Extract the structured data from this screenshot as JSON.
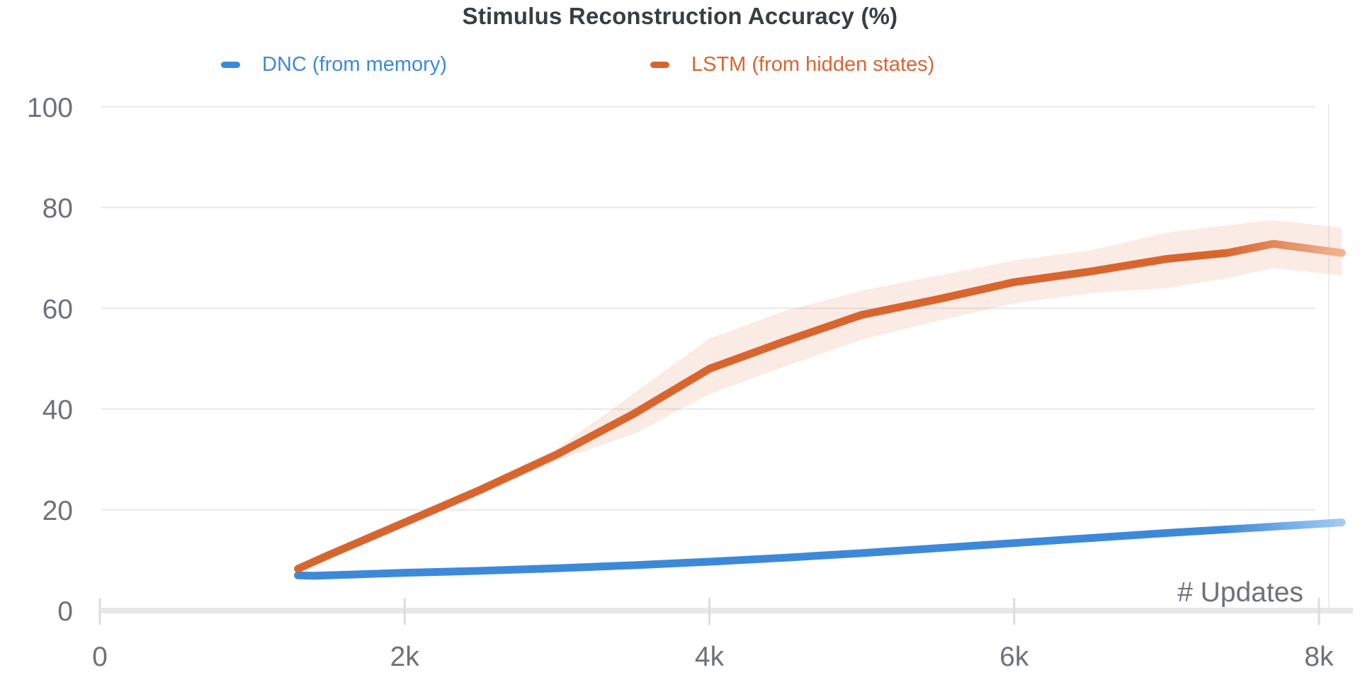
{
  "chart_data": {
    "type": "line",
    "title": "Stimulus Reconstruction Accuracy (%)",
    "xlabel": "# Updates",
    "ylabel": "",
    "xlim": [
      0,
      8200
    ],
    "ylim": [
      0,
      100
    ],
    "grid": "horizontal-only",
    "legend_position": "top",
    "x_ticks": [
      {
        "label": "0",
        "value": 0
      },
      {
        "label": "2k",
        "value": 2000
      },
      {
        "label": "4k",
        "value": 4000
      },
      {
        "label": "6k",
        "value": 6000
      },
      {
        "label": "8k",
        "value": 8000
      }
    ],
    "y_ticks": [
      {
        "label": "0",
        "value": 0
      },
      {
        "label": "20",
        "value": 20
      },
      {
        "label": "40",
        "value": 40
      },
      {
        "label": "60",
        "value": 60
      },
      {
        "label": "80",
        "value": 80
      },
      {
        "label": "100",
        "value": 100
      }
    ],
    "series": [
      {
        "name": "DNC (from memory)",
        "color": "#3d89d9",
        "fade_color": "#a6cdf1",
        "band_color": "rgba(61,137,217,0.14)",
        "x": [
          1300,
          1400,
          2000,
          2500,
          3000,
          3500,
          4000,
          4500,
          5000,
          5500,
          6000,
          6500,
          7000,
          7500,
          8000,
          8150
        ],
        "y": [
          7.0,
          6.9,
          7.5,
          7.9,
          8.4,
          9.0,
          9.7,
          10.5,
          11.4,
          12.4,
          13.4,
          14.4,
          15.4,
          16.3,
          17.2,
          17.5
        ],
        "band_upper": [
          7.6,
          7.5,
          8.1,
          8.5,
          9.1,
          9.7,
          10.4,
          11.2,
          12.1,
          13.1,
          14.1,
          15.1,
          16.1,
          17.0,
          17.9,
          18.2
        ],
        "band_lower": [
          6.4,
          6.3,
          6.9,
          7.3,
          7.7,
          8.3,
          9.0,
          9.8,
          10.7,
          11.7,
          12.7,
          13.7,
          14.7,
          15.6,
          16.5,
          16.8
        ]
      },
      {
        "name": "LSTM (from hidden states)",
        "color": "#d9652e",
        "fade_color": "#f0b695",
        "band_color": "rgba(217,101,46,0.13)",
        "x": [
          1300,
          1500,
          2000,
          2500,
          3000,
          3500,
          4000,
          4500,
          5000,
          5500,
          6000,
          6500,
          7000,
          7400,
          7700,
          8150
        ],
        "y": [
          8.3,
          11.0,
          17.5,
          24.0,
          31.0,
          39.0,
          48.0,
          53.5,
          58.7,
          61.8,
          65.2,
          67.3,
          69.8,
          71.0,
          72.8,
          71.0
        ],
        "band_upper": [
          8.9,
          11.6,
          18.3,
          25.0,
          32.2,
          43.0,
          54.0,
          59.5,
          63.5,
          66.5,
          69.5,
          71.5,
          75.0,
          76.5,
          77.5,
          76.0
        ],
        "band_lower": [
          7.7,
          10.4,
          16.7,
          23.0,
          29.8,
          35.0,
          43.0,
          48.5,
          53.8,
          57.5,
          61.0,
          63.0,
          64.0,
          66.0,
          68.0,
          66.5
        ]
      }
    ]
  }
}
